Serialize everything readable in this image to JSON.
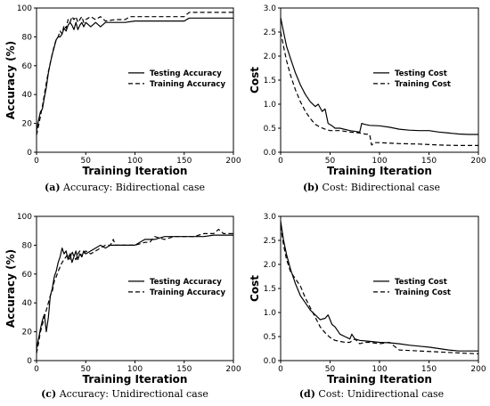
{
  "figure": {
    "captions": [
      {
        "tag": "(a)",
        "text": "Accuracy: Bidirectional case"
      },
      {
        "tag": "(b)",
        "text": "Cost: Bidirectional case"
      },
      {
        "tag": "(c)",
        "text": "Accuracy: Unidirectional case"
      },
      {
        "tag": "(d)",
        "text": "Cost: Unidirectional case"
      }
    ]
  },
  "chart_data": [
    {
      "type": "line",
      "title": "",
      "xlabel": "Training Iteration",
      "ylabel": "Accuracy (%)",
      "xlim": [
        0,
        200
      ],
      "ylim": [
        0,
        100
      ],
      "xticks": [
        "0",
        "50",
        "100",
        "150",
        "200"
      ],
      "yticks": [
        "0",
        "20",
        "40",
        "60",
        "80",
        "100"
      ],
      "legend_position": "right",
      "grid": false,
      "series": [
        {
          "name": "Testing Accuracy",
          "style": "solid",
          "x": [
            0,
            2,
            4,
            6,
            8,
            10,
            12,
            14,
            16,
            18,
            20,
            22,
            24,
            26,
            28,
            30,
            32,
            34,
            36,
            38,
            40,
            42,
            44,
            46,
            48,
            50,
            55,
            60,
            65,
            70,
            80,
            90,
            100,
            110,
            120,
            130,
            140,
            150,
            155,
            160,
            170,
            180,
            190,
            200
          ],
          "y": [
            15,
            22,
            28,
            30,
            38,
            45,
            55,
            62,
            68,
            73,
            78,
            80,
            80,
            82,
            86,
            84,
            88,
            90,
            88,
            85,
            90,
            85,
            88,
            90,
            87,
            90,
            87,
            90,
            87,
            90,
            90,
            90,
            91,
            91,
            91,
            91,
            91,
            91,
            93,
            93,
            93,
            93,
            93,
            93
          ]
        },
        {
          "name": "Training Accuracy",
          "style": "dashed",
          "x": [
            0,
            2,
            4,
            6,
            8,
            10,
            12,
            14,
            16,
            18,
            20,
            22,
            24,
            26,
            28,
            30,
            32,
            34,
            36,
            38,
            40,
            42,
            44,
            46,
            48,
            50,
            55,
            60,
            65,
            70,
            80,
            90,
            95,
            100,
            110,
            120,
            130,
            140,
            150,
            155,
            160,
            170,
            180,
            190,
            200
          ],
          "y": [
            12,
            18,
            25,
            32,
            40,
            48,
            56,
            62,
            68,
            74,
            78,
            80,
            84,
            82,
            88,
            86,
            92,
            90,
            94,
            92,
            94,
            90,
            92,
            94,
            90,
            92,
            94,
            92,
            94,
            91,
            92,
            92,
            94,
            94,
            94,
            94,
            94,
            94,
            94,
            97,
            97,
            97,
            97,
            97,
            97
          ]
        }
      ]
    },
    {
      "type": "line",
      "title": "",
      "xlabel": "Training Iteration",
      "ylabel": "Cost",
      "xlim": [
        0,
        200
      ],
      "ylim": [
        0,
        3.0
      ],
      "xticks": [
        "0",
        "50",
        "100",
        "150",
        "200"
      ],
      "yticks": [
        "0.0",
        "0.5",
        "1.0",
        "1.5",
        "2.0",
        "2.5",
        "3.0"
      ],
      "legend_position": "right",
      "grid": false,
      "series": [
        {
          "name": "Testing Cost",
          "style": "solid",
          "x": [
            0,
            3,
            6,
            10,
            15,
            20,
            25,
            30,
            35,
            38,
            42,
            45,
            48,
            52,
            55,
            60,
            70,
            80,
            82,
            85,
            90,
            100,
            110,
            120,
            130,
            140,
            150,
            160,
            170,
            180,
            190,
            200
          ],
          "y": [
            2.8,
            2.5,
            2.2,
            1.95,
            1.65,
            1.4,
            1.2,
            1.05,
            0.95,
            1.0,
            0.85,
            0.9,
            0.6,
            0.55,
            0.5,
            0.5,
            0.45,
            0.42,
            0.6,
            0.58,
            0.56,
            0.55,
            0.52,
            0.48,
            0.46,
            0.45,
            0.45,
            0.42,
            0.4,
            0.38,
            0.37,
            0.37
          ]
        },
        {
          "name": "Training Cost",
          "style": "dashed",
          "x": [
            0,
            3,
            6,
            10,
            15,
            20,
            25,
            30,
            35,
            40,
            45,
            50,
            60,
            70,
            80,
            85,
            90,
            92,
            95,
            100,
            120,
            140,
            160,
            180,
            200
          ],
          "y": [
            2.5,
            2.2,
            1.9,
            1.6,
            1.3,
            1.05,
            0.85,
            0.7,
            0.58,
            0.52,
            0.48,
            0.45,
            0.45,
            0.42,
            0.4,
            0.38,
            0.37,
            0.15,
            0.2,
            0.2,
            0.18,
            0.17,
            0.15,
            0.14,
            0.14
          ]
        }
      ]
    },
    {
      "type": "line",
      "title": "",
      "xlabel": "Training Iteration",
      "ylabel": "Accuracy (%)",
      "xlim": [
        0,
        200
      ],
      "ylim": [
        0,
        100
      ],
      "xticks": [
        "0",
        "50",
        "100",
        "150",
        "200"
      ],
      "yticks": [
        "0",
        "20",
        "40",
        "60",
        "80",
        "100"
      ],
      "legend_position": "right",
      "grid": false,
      "series": [
        {
          "name": "Testing Accuracy",
          "style": "solid",
          "x": [
            0,
            2,
            4,
            6,
            8,
            10,
            12,
            14,
            16,
            18,
            20,
            22,
            24,
            26,
            28,
            30,
            32,
            34,
            36,
            38,
            40,
            42,
            44,
            46,
            48,
            50,
            55,
            60,
            65,
            70,
            75,
            80,
            90,
            100,
            110,
            120,
            130,
            140,
            150,
            160,
            170,
            180,
            190,
            200
          ],
          "y": [
            8,
            15,
            22,
            28,
            32,
            20,
            30,
            45,
            50,
            58,
            62,
            68,
            72,
            78,
            74,
            76,
            70,
            74,
            68,
            72,
            76,
            70,
            74,
            72,
            76,
            74,
            76,
            78,
            80,
            78,
            80,
            80,
            80,
            80,
            84,
            84,
            86,
            86,
            86,
            86,
            86,
            87,
            87,
            87
          ]
        },
        {
          "name": "Training Accuracy",
          "style": "dashed",
          "x": [
            0,
            2,
            4,
            6,
            8,
            10,
            12,
            14,
            16,
            18,
            20,
            22,
            24,
            26,
            28,
            30,
            32,
            34,
            36,
            38,
            40,
            42,
            44,
            46,
            48,
            50,
            55,
            60,
            65,
            70,
            75,
            78,
            80,
            85,
            90,
            100,
            110,
            115,
            120,
            130,
            140,
            150,
            160,
            170,
            180,
            185,
            190,
            200
          ],
          "y": [
            5,
            12,
            20,
            25,
            30,
            35,
            40,
            45,
            48,
            55,
            58,
            62,
            65,
            68,
            70,
            72,
            74,
            70,
            76,
            72,
            70,
            74,
            76,
            72,
            74,
            76,
            74,
            76,
            78,
            80,
            80,
            84,
            80,
            80,
            80,
            80,
            82,
            82,
            86,
            84,
            86,
            86,
            86,
            88,
            88,
            91,
            88,
            88
          ]
        }
      ]
    },
    {
      "type": "line",
      "title": "",
      "xlabel": "Training Iteration",
      "ylabel": "Cost",
      "xlim": [
        0,
        200
      ],
      "ylim": [
        0,
        3.0
      ],
      "xticks": [
        "0",
        "50",
        "100",
        "150",
        "200"
      ],
      "yticks": [
        "0.0",
        "0.5",
        "1.0",
        "1.5",
        "2.0",
        "2.5",
        "3.0"
      ],
      "legend_position": "right",
      "grid": false,
      "series": [
        {
          "name": "Testing Cost",
          "style": "solid",
          "x": [
            0,
            3,
            6,
            10,
            15,
            20,
            25,
            30,
            35,
            40,
            45,
            48,
            50,
            52,
            55,
            60,
            65,
            70,
            72,
            75,
            80,
            90,
            100,
            110,
            120,
            130,
            140,
            150,
            160,
            170,
            180,
            190,
            200
          ],
          "y": [
            2.9,
            2.5,
            2.2,
            1.9,
            1.6,
            1.35,
            1.2,
            1.05,
            0.95,
            0.85,
            0.88,
            0.95,
            0.85,
            0.75,
            0.7,
            0.55,
            0.5,
            0.45,
            0.55,
            0.45,
            0.42,
            0.4,
            0.38,
            0.37,
            0.35,
            0.32,
            0.3,
            0.28,
            0.25,
            0.22,
            0.2,
            0.2,
            0.2
          ]
        },
        {
          "name": "Training Cost",
          "style": "dashed",
          "x": [
            0,
            3,
            6,
            10,
            15,
            20,
            25,
            30,
            35,
            40,
            45,
            50,
            55,
            60,
            65,
            70,
            75,
            80,
            85,
            90,
            100,
            110,
            115,
            120,
            140,
            160,
            180,
            200
          ],
          "y": [
            2.8,
            2.4,
            2.1,
            1.85,
            1.7,
            1.55,
            1.3,
            1.1,
            0.9,
            0.7,
            0.58,
            0.48,
            0.42,
            0.4,
            0.38,
            0.38,
            0.45,
            0.35,
            0.38,
            0.38,
            0.35,
            0.38,
            0.3,
            0.22,
            0.2,
            0.18,
            0.16,
            0.14
          ]
        }
      ]
    }
  ]
}
